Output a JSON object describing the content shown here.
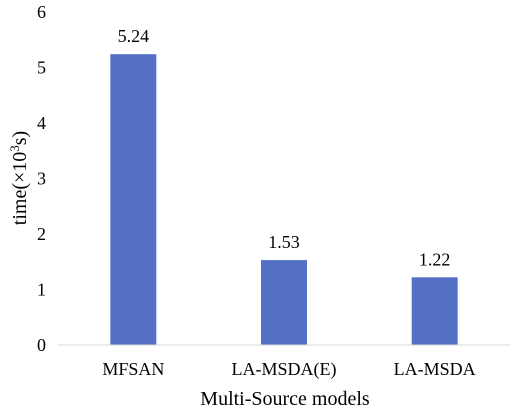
{
  "chart_data": {
    "type": "bar",
    "categories": [
      "MFSAN",
      "LA-MSDA(E)",
      "LA-MSDA"
    ],
    "values": [
      5.24,
      1.53,
      1.22
    ],
    "data_labels": [
      "5.24",
      "1.53",
      "1.22"
    ],
    "xlabel": "Multi-Source models",
    "ylabel_prefix": "time(×10",
    "ylabel_sup": "3",
    "ylabel_suffix": "s)",
    "ylim": [
      0,
      6
    ],
    "yticks": [
      0,
      1,
      2,
      3,
      4,
      5,
      6
    ],
    "grid": false,
    "bar_color": "#5470C6"
  }
}
